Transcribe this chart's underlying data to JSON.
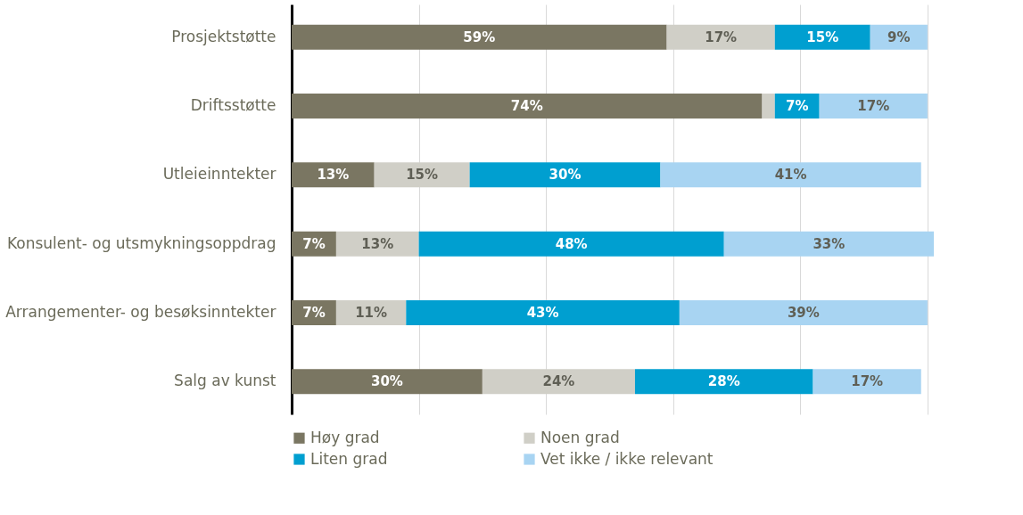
{
  "chart_data": {
    "type": "bar",
    "orientation": "horizontal",
    "stacked": true,
    "categories": [
      "Prosjektstøtte",
      "Driftsstøtte",
      "Utleieinntekter",
      "Konsulent- og utsmykningsoppdrag",
      "Arrangementer- og besøksinntekter",
      "Salg av kunst"
    ],
    "series": [
      {
        "name": "Høy grad",
        "color": "#7a7662",
        "values": [
          59,
          74,
          13,
          7,
          7,
          30
        ],
        "value_labels": [
          "59%",
          "74%",
          "13%",
          "7%",
          "7%",
          "30%"
        ]
      },
      {
        "name": "Noen grad",
        "color": "#d0cfc7",
        "values": [
          17,
          2,
          15,
          13,
          11,
          24
        ],
        "value_labels": [
          "17%",
          null,
          "15%",
          "13%",
          "11%",
          "24%"
        ]
      },
      {
        "name": "Liten grad",
        "color": "#009fd0",
        "values": [
          15,
          7,
          30,
          48,
          43,
          28
        ],
        "value_labels": [
          "15%",
          "7%",
          "30%",
          "48%",
          "43%",
          "28%"
        ]
      },
      {
        "name": "Vet ikke / ikke relevant",
        "color": "#a8d4f2",
        "values": [
          9,
          17,
          41,
          33,
          39,
          17
        ],
        "value_labels": [
          "9%",
          "17%",
          "41%",
          "33%",
          "39%",
          "17%"
        ]
      }
    ],
    "xlim": [
      0,
      101
    ],
    "xticks": [
      {
        "value": 0,
        "label": null
      },
      {
        "value": 20,
        "label": null
      },
      {
        "value": 40,
        "label": null
      },
      {
        "value": 60,
        "label": null
      },
      {
        "value": 80,
        "label": null
      },
      {
        "value": 100,
        "label": null
      }
    ],
    "tick_labels": "y",
    "grid": "x",
    "legend": "bottom"
  }
}
